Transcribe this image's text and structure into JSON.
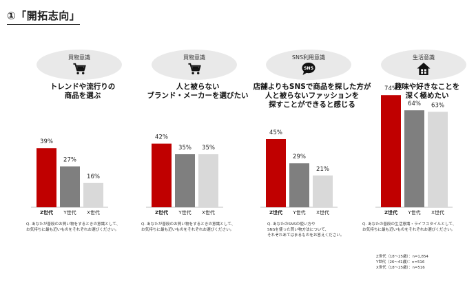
{
  "page_title": "①「開拓志向」",
  "colors": {
    "z": "#c00000",
    "y": "#7f7f7f",
    "x": "#d9d9d9",
    "badge_bg": "#e9e9e9"
  },
  "chart_data": [
    {
      "type": "bar",
      "badge": "買物意識",
      "icon": "cart-icon",
      "headline_lines": [
        "トレンドや流行りの",
        "商品を選ぶ"
      ],
      "categories": [
        "Z世代",
        "Y世代",
        "X世代"
      ],
      "values": [
        39,
        27,
        16
      ],
      "value_labels": [
        "39%",
        "27%",
        "16%"
      ],
      "ylim": [
        0,
        100
      ],
      "note_lines": [
        "Q. あなたが普段のお買い物をするときの意識として、",
        "お気持ちに最も近いものをそれぞれお選びください。"
      ]
    },
    {
      "type": "bar",
      "badge": "買物意識",
      "icon": "cart-icon",
      "headline_lines": [
        "人と被らない",
        "ブランド・メーカーを選びたい"
      ],
      "categories": [
        "Z世代",
        "Y世代",
        "X世代"
      ],
      "values": [
        42,
        35,
        35
      ],
      "value_labels": [
        "42%",
        "35%",
        "35%"
      ],
      "ylim": [
        0,
        100
      ],
      "note_lines": [
        "Q. あなたが普段のお買い物をするときの意識として、",
        "お気持ちに最も近いものをそれぞれお選びください。"
      ]
    },
    {
      "type": "bar",
      "badge": "SNS利用意識",
      "icon": "sns-bubble-icon",
      "headline_lines": [
        "店舗よりもSNSで商品を探した方が",
        "人と被らないファッションを",
        "探すことができると感じる"
      ],
      "categories": [
        "Z世代",
        "Y世代",
        "X世代"
      ],
      "values": [
        45,
        29,
        21
      ],
      "value_labels": [
        "45%",
        "29%",
        "21%"
      ],
      "ylim": [
        0,
        100
      ],
      "note_lines": [
        "Q. あなたのSNSの使い方や",
        "SNSを使った買い物方法について、",
        "それぞれあてはまるものをお答えください。"
      ]
    },
    {
      "type": "bar",
      "badge": "生活意識",
      "icon": "house-icon",
      "headline_lines": [
        "趣味や好きなことを",
        "深く極めたい"
      ],
      "categories": [
        "Z世代",
        "Y世代",
        "X世代"
      ],
      "values": [
        74,
        64,
        63
      ],
      "value_labels": [
        "74%",
        "64%",
        "63%"
      ],
      "ylim": [
        0,
        100
      ],
      "note_lines": [
        "Q. あなたの普段の生活意識・ライフスタイルとして、",
        "お気持ちに最も近いものをそれぞれお選びください。"
      ]
    }
  ],
  "legend_lines": [
    "Z世代（18〜25歳）：n=1,854",
    "Y世代（26〜41歳）：n=516",
    "X世代（18〜25歳）：n=516"
  ]
}
